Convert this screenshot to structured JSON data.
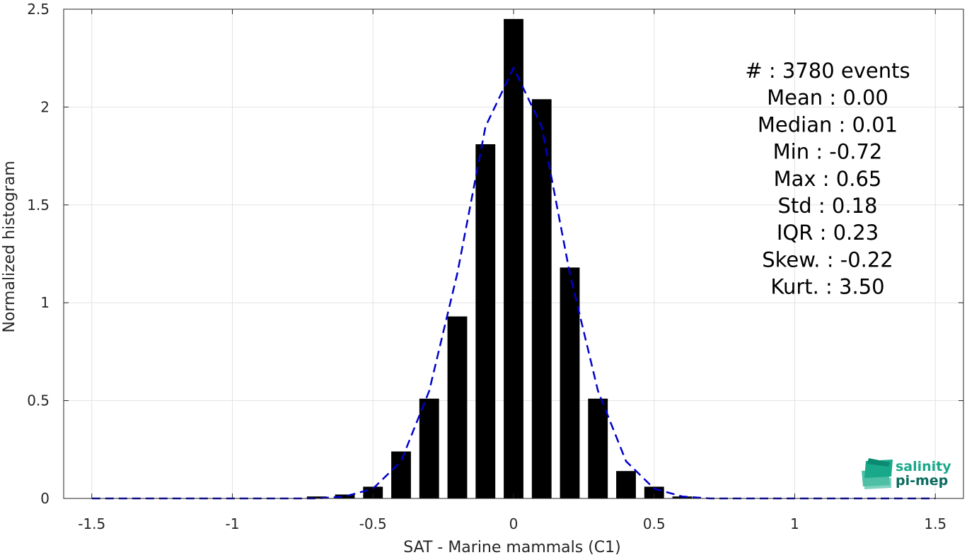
{
  "chart_data": {
    "type": "bar",
    "xlabel": "SAT - Marine mammals (C1)",
    "ylabel": "Normalized histogram",
    "xlim": [
      -1.6,
      1.6
    ],
    "ylim": [
      0,
      2.5
    ],
    "xticks": [
      -1.5,
      -1,
      -0.5,
      0,
      0.5,
      1,
      1.5
    ],
    "xtick_labels": [
      "-1.5",
      "-1",
      "-0.5",
      "0",
      "0.5",
      "1",
      "1.5"
    ],
    "yticks": [
      0,
      0.5,
      1,
      1.5,
      2,
      2.5
    ],
    "ytick_labels": [
      "0",
      "0.5",
      "1",
      "1.5",
      "2",
      "2.5"
    ],
    "grid": true,
    "bar_width": 0.07,
    "bars": {
      "x": [
        -0.7,
        -0.6,
        -0.5,
        -0.4,
        -0.3,
        -0.2,
        -0.1,
        0.0,
        0.1,
        0.2,
        0.3,
        0.4,
        0.5,
        0.6
      ],
      "values": [
        0.01,
        0.02,
        0.06,
        0.24,
        0.51,
        0.93,
        1.81,
        2.45,
        2.04,
        1.18,
        0.51,
        0.14,
        0.06,
        0.01
      ],
      "color": "#000000"
    },
    "fit_line": {
      "style": "dashed",
      "color": "#0000cc",
      "x": [
        -1.5,
        -1.4,
        -1.3,
        -1.2,
        -1.1,
        -1.0,
        -0.9,
        -0.8,
        -0.7,
        -0.6,
        -0.5,
        -0.4,
        -0.3,
        -0.2,
        -0.1,
        0.0,
        0.1,
        0.2,
        0.3,
        0.4,
        0.5,
        0.6,
        0.7,
        0.8,
        0.9,
        1.0,
        1.1,
        1.2,
        1.3,
        1.4,
        1.5
      ],
      "y": [
        0,
        0,
        0,
        0,
        0,
        0,
        0,
        0,
        0,
        0.01,
        0.05,
        0.19,
        0.55,
        1.15,
        1.9,
        2.2,
        1.9,
        1.15,
        0.55,
        0.19,
        0.05,
        0.01,
        0,
        0,
        0,
        0,
        0,
        0,
        0,
        0,
        0
      ]
    },
    "stats": [
      {
        "label": "#  ",
        "value": "3780 events"
      },
      {
        "label": "Mean",
        "value": "0.00"
      },
      {
        "label": "Median",
        "value": "0.01"
      },
      {
        "label": "Min",
        "value": "-0.72"
      },
      {
        "label": "Max",
        "value": "0.65"
      },
      {
        "label": "Std",
        "value": "0.18"
      },
      {
        "label": "IQR",
        "value": "0.23"
      },
      {
        "label": "Skew.",
        "value": "-0.22"
      },
      {
        "label": "Kurt.",
        "value": "3.50"
      }
    ]
  },
  "logo": {
    "line1": "salinity",
    "line2": "pi-mep",
    "color1": "#1aa88a",
    "color2": "#0b6b5e"
  }
}
